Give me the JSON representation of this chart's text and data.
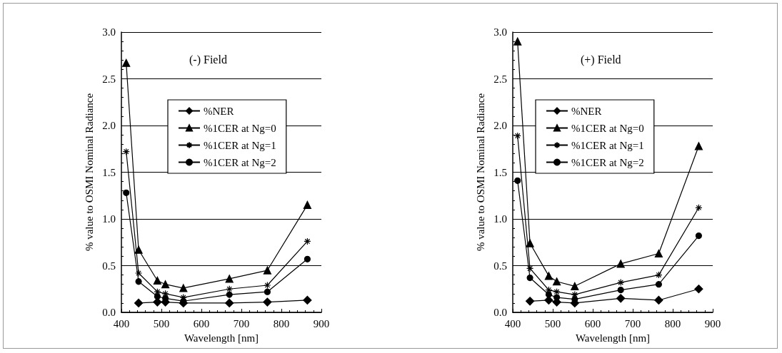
{
  "chart_data": [
    {
      "type": "line",
      "title": "(-) Field",
      "xlabel": "Wavelength [nm]",
      "ylabel": "% value to OSMI Nominal Radiance",
      "x": [
        412,
        443,
        490,
        510,
        555,
        670,
        765,
        865
      ],
      "series": [
        {
          "name": "%NER",
          "color": "#000000",
          "marker": "diamond",
          "values": [
            null,
            0.1,
            0.11,
            0.11,
            0.1,
            0.1,
            0.11,
            0.13
          ]
        },
        {
          "name": "%1CER at Ng=0",
          "color": "#000000",
          "marker": "triangle",
          "values": [
            2.67,
            0.67,
            0.34,
            0.3,
            0.26,
            0.36,
            0.45,
            1.15
          ]
        },
        {
          "name": "%1CER at Ng=1",
          "color": "#000000",
          "marker": "cross",
          "values": [
            1.72,
            0.42,
            0.22,
            0.2,
            0.16,
            0.25,
            0.29,
            0.76
          ]
        },
        {
          "name": "%1CER at Ng=2",
          "color": "#000000",
          "marker": "circle",
          "values": [
            1.28,
            0.33,
            0.17,
            0.15,
            0.12,
            0.19,
            0.22,
            0.57
          ]
        }
      ],
      "xlim": [
        400,
        900
      ],
      "xticks": [
        400,
        500,
        600,
        700,
        800,
        900
      ],
      "ylim": [
        0,
        3
      ],
      "yticks": [
        {
          "value": 0,
          "label": "0.0"
        },
        0.5,
        {
          "value": 1,
          "label": "1.0"
        },
        1.5,
        {
          "value": 2,
          "label": "2.0"
        },
        2.5,
        {
          "value": 3,
          "label": "3.0"
        }
      ],
      "grid": "y",
      "legend": "top right",
      "line_style": "solid"
    },
    {
      "type": "line",
      "title": "(+) Field",
      "xlabel": "Wavelength [nm]",
      "ylabel": "% value to OSMI Nominal Radiance",
      "x": [
        412,
        443,
        490,
        510,
        555,
        670,
        765,
        865
      ],
      "series": [
        {
          "name": "%NER",
          "color": "#000000",
          "marker": "diamond",
          "values": [
            null,
            0.12,
            0.13,
            0.11,
            0.1,
            0.15,
            0.13,
            0.25
          ]
        },
        {
          "name": "%1CER at Ng=0",
          "color": "#000000",
          "marker": "triangle",
          "values": [
            2.9,
            0.74,
            0.39,
            0.33,
            0.28,
            0.52,
            0.63,
            1.78
          ]
        },
        {
          "name": "%1CER at Ng=1",
          "color": "#000000",
          "marker": "cross",
          "values": [
            1.89,
            0.47,
            0.24,
            0.22,
            0.19,
            0.32,
            0.4,
            1.12
          ]
        },
        {
          "name": "%1CER at Ng=2",
          "color": "#000000",
          "marker": "circle",
          "values": [
            1.41,
            0.37,
            0.19,
            0.16,
            0.14,
            0.24,
            0.3,
            0.82
          ]
        }
      ],
      "xlim": [
        400,
        900
      ],
      "xticks": [
        400,
        500,
        600,
        700,
        800,
        900
      ],
      "ylim": [
        0,
        3
      ],
      "yticks": [
        {
          "value": 0,
          "label": "0.0"
        },
        0.5,
        {
          "value": 1,
          "label": "1.0"
        },
        1.5,
        {
          "value": 2,
          "label": "2.0"
        },
        2.5,
        {
          "value": 3,
          "label": "3.0"
        }
      ],
      "grid": "y",
      "legend": "top left",
      "line_style": "solid"
    }
  ]
}
